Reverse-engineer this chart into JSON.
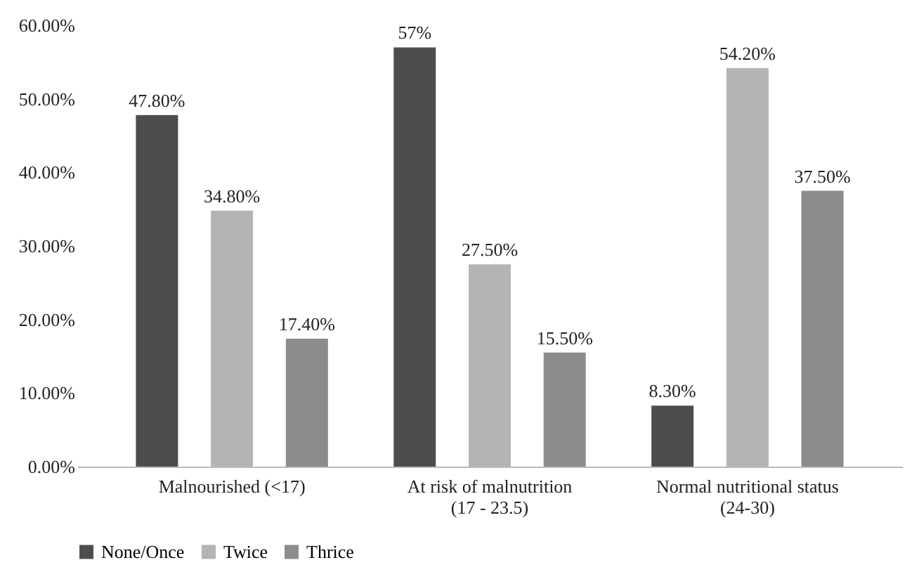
{
  "chart_data": {
    "type": "bar",
    "categories": [
      "Malnourished (<17)",
      "At risk of malnutrition\n(17 - 23.5)",
      "Normal nutritional status\n(24-30)"
    ],
    "series": [
      {
        "name": "None/Once",
        "color": "#4d4d4d",
        "values": [
          47.8,
          57,
          8.3
        ],
        "value_labels": [
          "47.80%",
          "57%",
          "8.30%"
        ]
      },
      {
        "name": "Twice",
        "color": "#b4b4b4",
        "values": [
          34.8,
          27.5,
          54.2
        ],
        "value_labels": [
          "34.80%",
          "27.50%",
          "54.20%"
        ]
      },
      {
        "name": "Thrice",
        "color": "#8c8c8c",
        "values": [
          17.4,
          15.5,
          37.5
        ],
        "value_labels": [
          "17.40%",
          "15.50%",
          "37.50%"
        ]
      }
    ],
    "ylim": [
      0,
      60
    ],
    "yticks": [
      {
        "value": 0,
        "label": "0.00%"
      },
      {
        "value": 10,
        "label": "10.00%"
      },
      {
        "value": 20,
        "label": "20.00%"
      },
      {
        "value": 30,
        "label": "30.00%"
      },
      {
        "value": 40,
        "label": "40.00%"
      },
      {
        "value": 50,
        "label": "50.00%"
      },
      {
        "value": 60,
        "label": "60.00%"
      }
    ],
    "grid": false,
    "legend": "bottom"
  }
}
